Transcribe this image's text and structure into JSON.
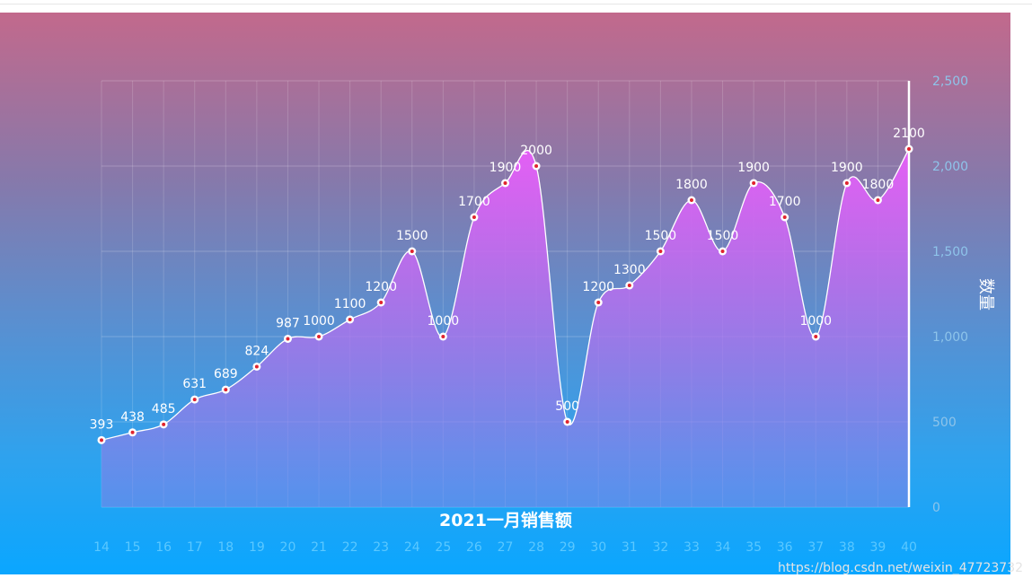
{
  "chart_data": {
    "type": "area",
    "title": "2021一月销售额",
    "ylabel": "数量",
    "ylim": [
      0,
      2500
    ],
    "y_ticks": [
      0,
      500,
      1000,
      1500,
      2000,
      2500
    ],
    "y_tick_labels": [
      "0",
      "500",
      "1,000",
      "1,500",
      "2,000",
      "2,500"
    ],
    "categories": [
      "14",
      "15",
      "16",
      "17",
      "18",
      "19",
      "20",
      "21",
      "22",
      "23",
      "24",
      "25",
      "26",
      "27",
      "28",
      "29",
      "30",
      "31",
      "32",
      "33",
      "34",
      "35",
      "36",
      "37",
      "38",
      "39",
      "40"
    ],
    "values": [
      393,
      438,
      485,
      631,
      689,
      824,
      987,
      1000,
      1100,
      1200,
      1500,
      1000,
      1700,
      1900,
      2000,
      500,
      1200,
      1300,
      1500,
      1800,
      1500,
      1900,
      1700,
      1000,
      1900,
      1800,
      2100
    ],
    "grid": true,
    "y_axis_position": "right",
    "colors": {
      "area_top": "#e45ff5",
      "area_bottom": "#7f83e6",
      "line": "#ffffff",
      "point_center": "#e0242e"
    }
  },
  "watermark": "https://blog.csdn.net/weixin_47723732"
}
